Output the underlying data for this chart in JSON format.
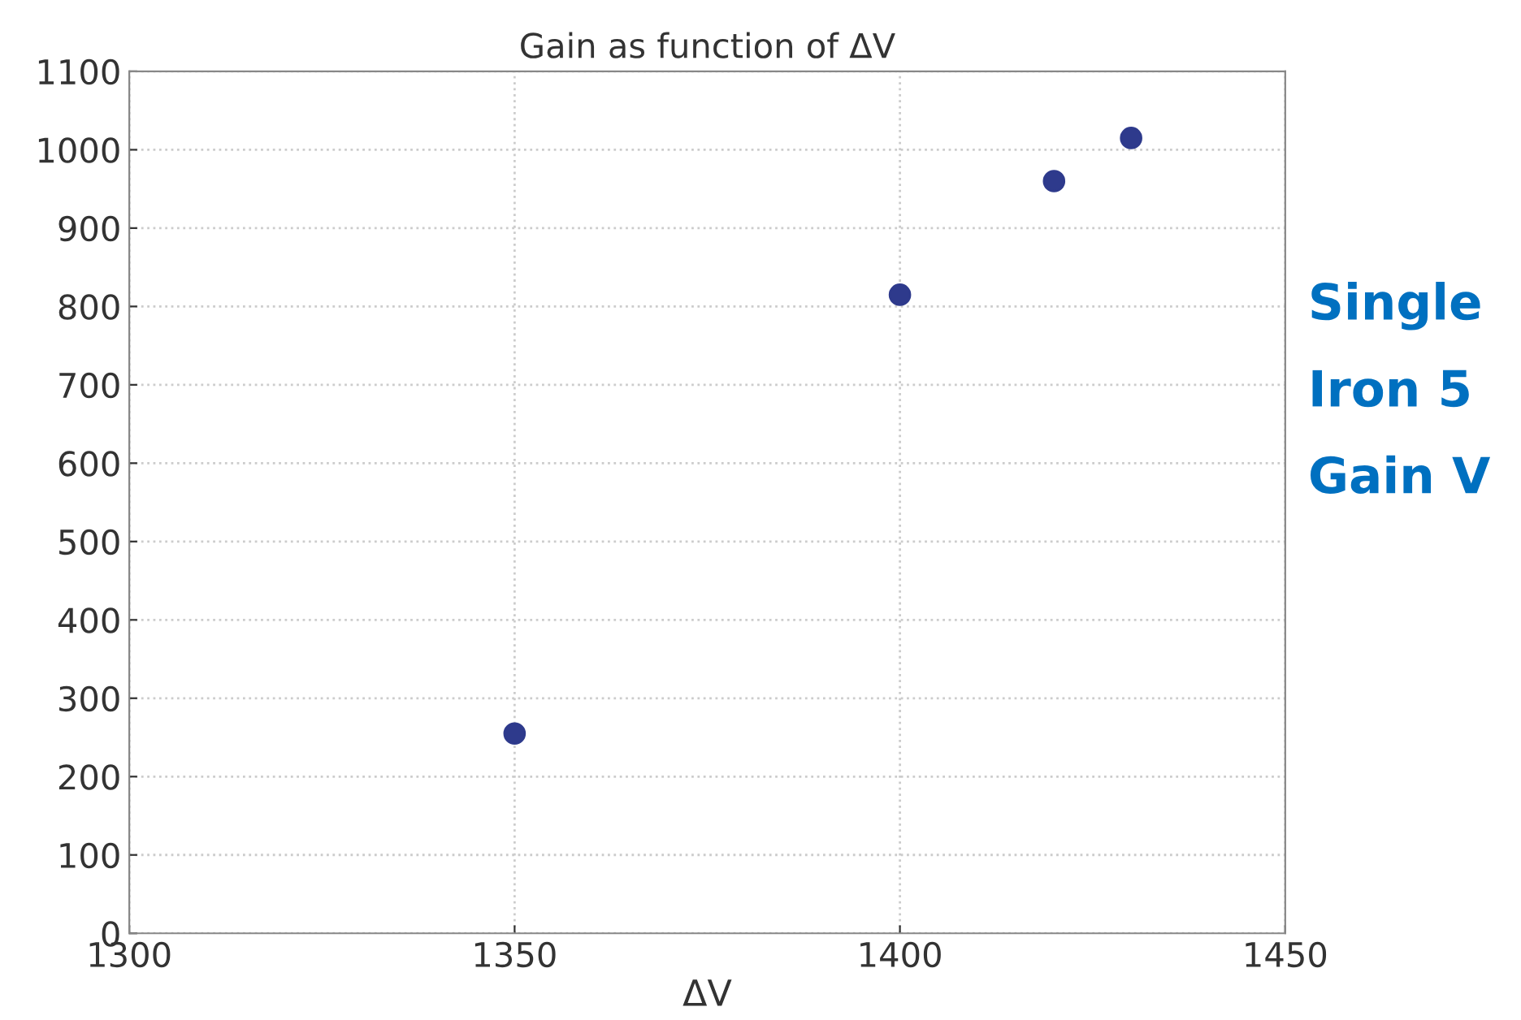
{
  "chart_data": {
    "type": "scatter",
    "title": "Gain as function of ΔV",
    "xlabel": "ΔV",
    "x": [
      1350,
      1400,
      1420,
      1430
    ],
    "series": [
      {
        "color": "#2e3a8c",
        "values": [
          255,
          815,
          960,
          1015
        ]
      }
    ],
    "xlim": [
      1300,
      1450
    ],
    "xticks": [
      1300,
      1350,
      1400,
      1450
    ],
    "ylim": [
      0,
      1100
    ],
    "yticks": [
      0,
      100,
      200,
      300,
      400,
      500,
      600,
      700,
      800,
      900,
      1000,
      1100
    ],
    "grid": true,
    "marker": "circle",
    "legend": false,
    "annotations": [
      "Single",
      "Iron 5",
      "Gain V"
    ]
  }
}
